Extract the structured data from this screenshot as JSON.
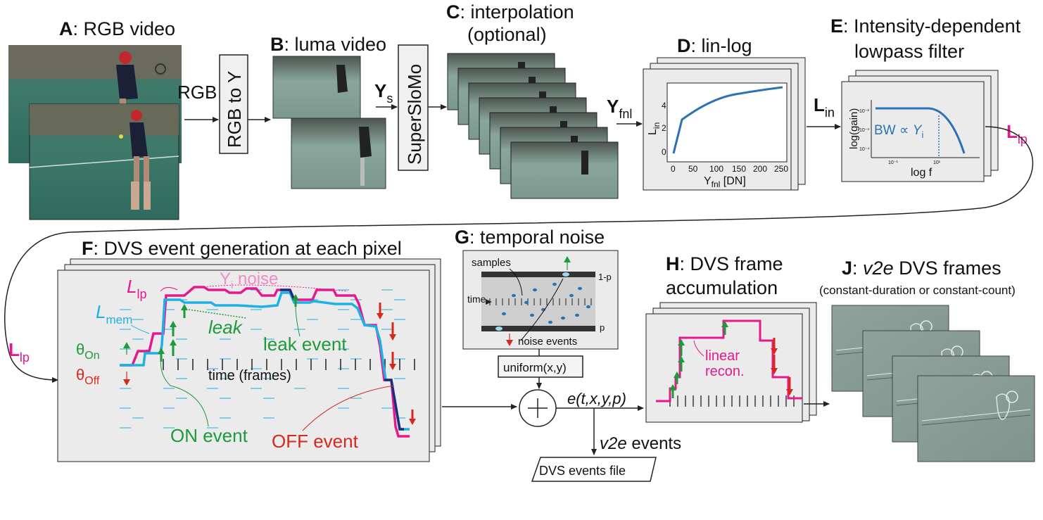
{
  "panels": {
    "A": {
      "letter": "A",
      "title": ": RGB video"
    },
    "B": {
      "letter": "B",
      "title": ": luma video"
    },
    "C": {
      "letter": "C",
      "title": ": interpolation",
      "subtitle": "(optional)"
    },
    "D": {
      "letter": "D",
      "title": ": lin-log"
    },
    "E": {
      "letter": "E",
      "title": ": Intensity-dependent",
      "subtitle": "lowpass filter"
    },
    "F": {
      "letter": "F",
      "title": ": DVS event generation at each pixel"
    },
    "G": {
      "letter": "G",
      "title": ": temporal noise"
    },
    "H": {
      "letter": "H",
      "title": ": DVS frame",
      "subtitle": "accumulation"
    },
    "J": {
      "letter": "J",
      "title": ": ",
      "title_italic": "v2e",
      "title_rest": " DVS frames",
      "subtitle": "(constant-duration or constant-count)"
    }
  },
  "blocks": {
    "rgb_to_y": "RGB to Y",
    "superslomo": "SuperSloMo",
    "uniform": "uniform(x,y)",
    "events_file": "DVS events file"
  },
  "signals": {
    "rgb": "RGB",
    "ys_main": "Y",
    "ys_sub": "s",
    "yfnl_main": "Y",
    "yfnl_sub": "fnl",
    "lin_main": "L",
    "lin_sub": "in",
    "llp_main": "L",
    "llp_sub": "lp",
    "event_tuple": "e(t,x,y,p)",
    "v2e_italic": "v2e",
    "v2e_rest": " events"
  },
  "linlog_plot": {
    "ylabel_main": "L",
    "ylabel_sub": "in",
    "xlabel_main": "Y",
    "xlabel_sub": "fnl",
    "xlabel_rest": " [DN]",
    "x_ticks": [
      "0",
      "50",
      "100",
      "150",
      "200",
      "250"
    ],
    "y_ticks": [
      "0",
      "2",
      "4"
    ]
  },
  "lowpass_plot": {
    "ylabel": "log(gain)",
    "xlabel": "log f",
    "bw_label": "BW ∝ ",
    "bw_var": "Y",
    "bw_sub": "i",
    "y_ticks": [
      "10⁻²",
      "10⁻³",
      "10⁻⁴"
    ],
    "x_ticks": [
      "10⁻¹",
      "10¹"
    ]
  },
  "dvs_panel": {
    "llp_label_main": "L",
    "llp_label_sub": "lp",
    "lmem_main": "L",
    "lmem_sub": "mem",
    "yi_noise": "Y",
    "yi_sub": "i",
    "yi_rest": " noise",
    "leak": "leak",
    "leak_event": "leak event",
    "theta_on_main": "θ",
    "theta_on_sub": "On",
    "theta_off_main": "θ",
    "theta_off_sub": "Off",
    "time_axis": "time (frames)",
    "on_event": "ON event",
    "off_event": "OFF event"
  },
  "noise_panel": {
    "samples": "samples",
    "time": "time",
    "one_minus_p": "1-p",
    "p": "p",
    "noise_events": "noise events"
  },
  "accum_panel": {
    "linear": "linear",
    "recon": "recon."
  },
  "colors": {
    "magenta": "#e6198c",
    "cyan": "#1fb1e6",
    "navy": "#1b2e7a",
    "green": "#1e9a3c",
    "red": "#d42a1e",
    "plot_blue": "#2a72b5",
    "panel_fill": "#ebebeb"
  }
}
